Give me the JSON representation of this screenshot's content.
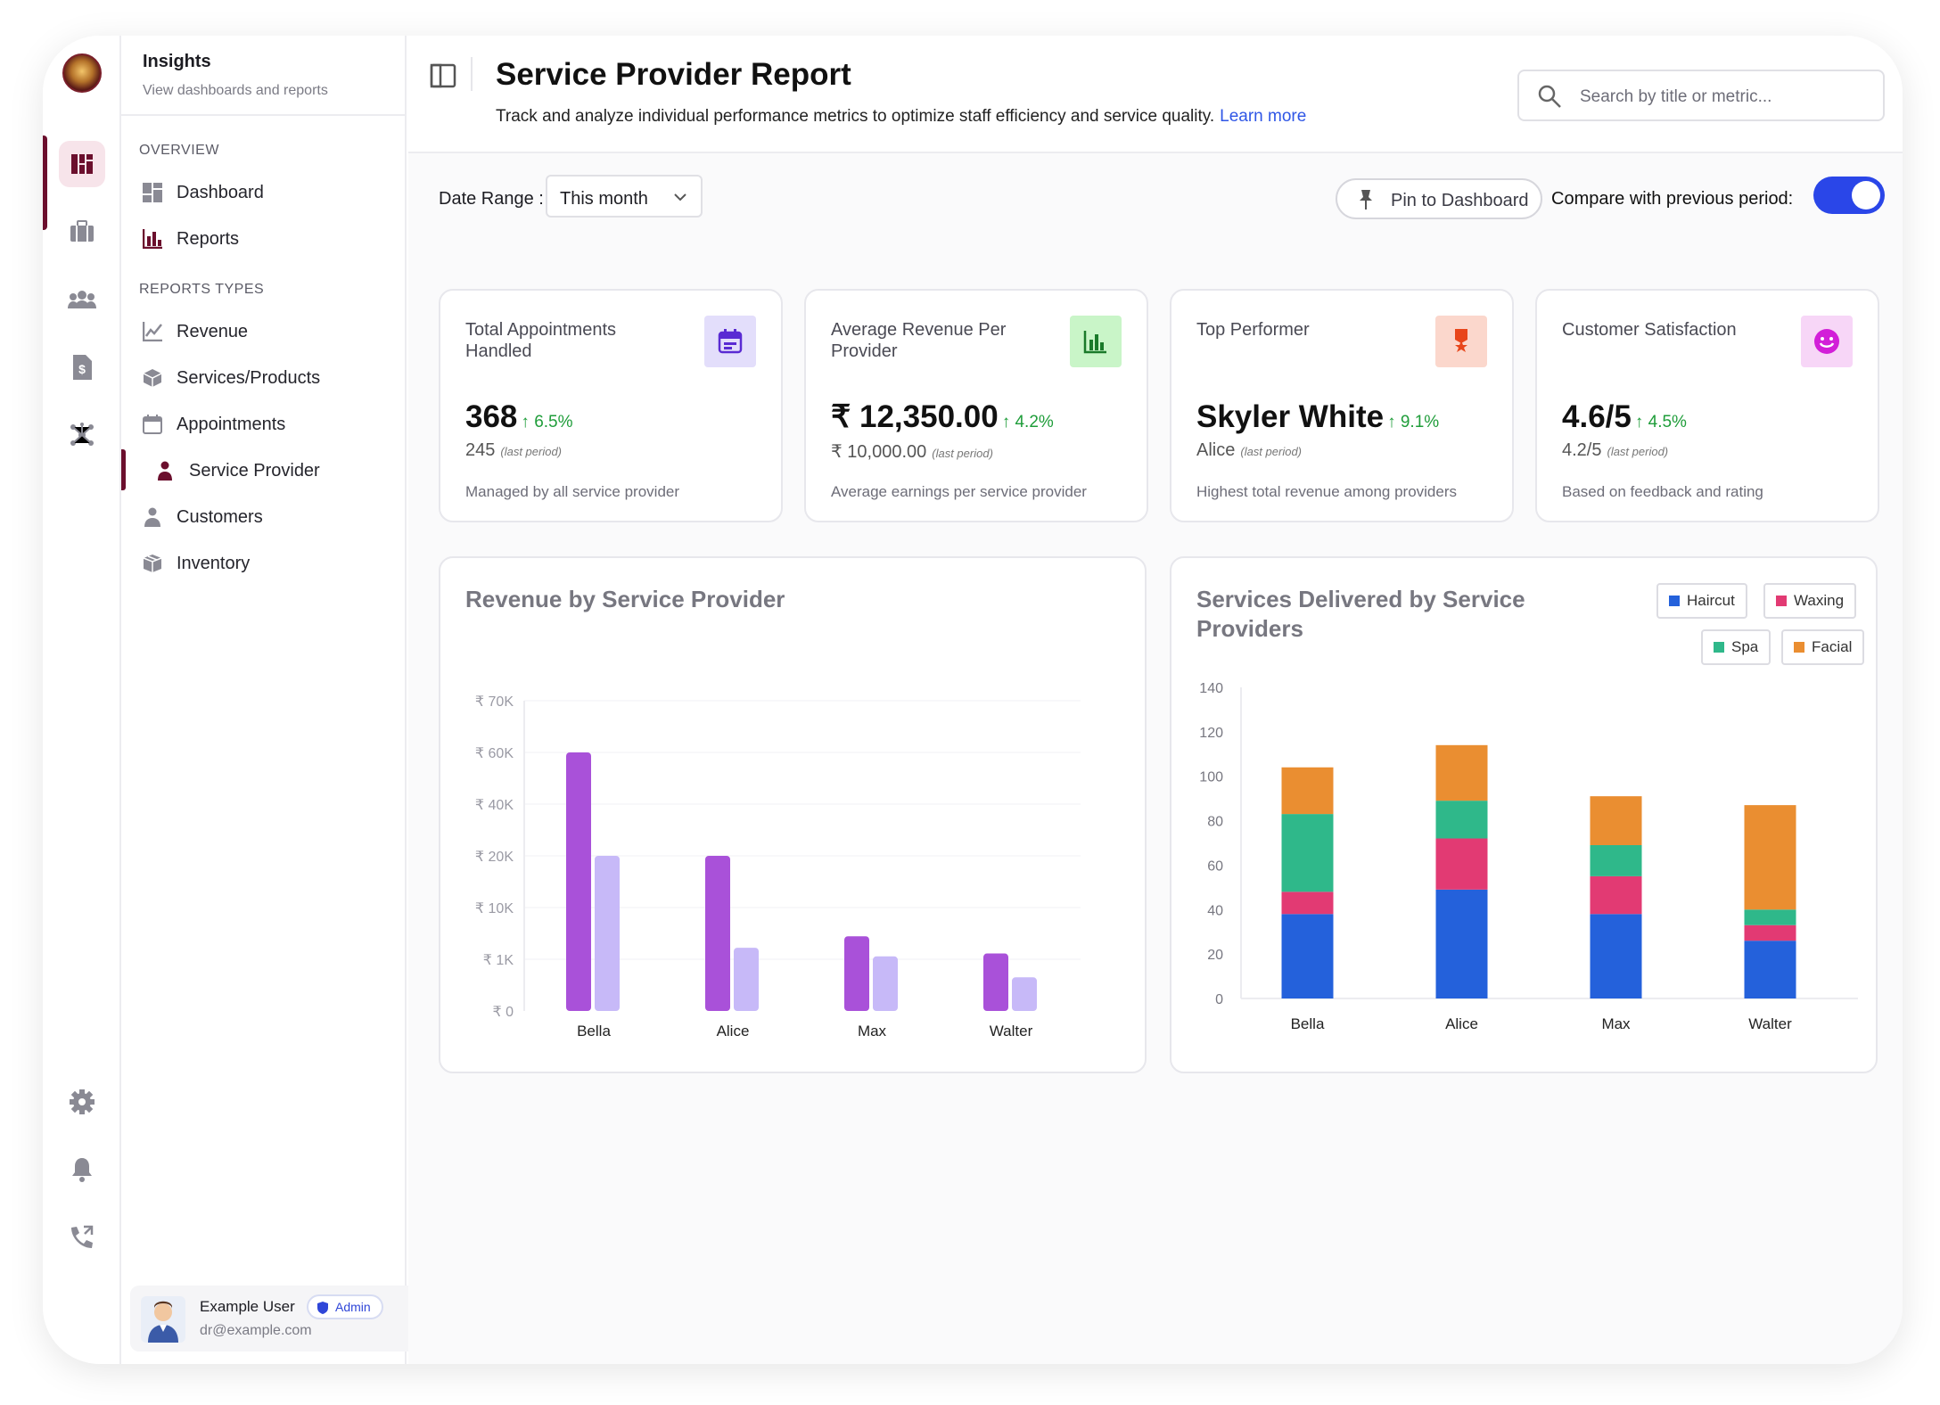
{
  "sidebar": {
    "title": "Insights",
    "subtitle": "View dashboards and reports",
    "overview_label": "OVERVIEW",
    "overview_items": [
      {
        "label": "Dashboard"
      },
      {
        "label": "Reports"
      }
    ],
    "report_types_label": "REPORTS TYPES",
    "report_items": [
      {
        "label": "Revenue"
      },
      {
        "label": "Services/Products"
      },
      {
        "label": "Appointments"
      },
      {
        "label": "Service Provider"
      },
      {
        "label": "Customers"
      },
      {
        "label": "Inventory"
      }
    ],
    "user": {
      "name": "Example User",
      "role": "Admin",
      "email": "dr@example.com"
    }
  },
  "header": {
    "title": "Service Provider Report",
    "subtitle": "Track and analyze individual performance metrics to optimize staff efficiency and service quality.",
    "learn_more": "Learn more",
    "search_placeholder": "Search by title or metric..."
  },
  "controls": {
    "date_range_label": "Date Range :",
    "date_range_value": "This month",
    "pin_label": "Pin to Dashboard",
    "compare_label": "Compare with previous period:",
    "compare_enabled": true
  },
  "cards": [
    {
      "label": "Total Appointments Handled",
      "value": "368",
      "change": "6.5%",
      "previous": "245",
      "previous_tag": "(last period)",
      "note": "Managed by all service provider",
      "icon": "calendar-icon",
      "icon_bg": "#e3defb",
      "icon_color": "#5a2bd3"
    },
    {
      "label": "Average Revenue Per Provider",
      "value": "₹ 12,350.00",
      "change": "4.2%",
      "previous": "₹ 10,000.00",
      "previous_tag": "(last period)",
      "note": "Average earnings per service provider",
      "icon": "bar-chart-icon",
      "icon_bg": "#c9f5c8",
      "icon_color": "#1a7a2a"
    },
    {
      "label": "Top Performer",
      "value": "Skyler White",
      "change": "9.1%",
      "previous": "Alice",
      "previous_tag": "(last period)",
      "note": "Highest total revenue among providers",
      "icon": "award-icon",
      "icon_bg": "#fbd7cc",
      "icon_color": "#e8461b"
    },
    {
      "label": "Customer Satisfaction",
      "value": "4.6/5",
      "change": "4.5%",
      "previous": "4.2/5",
      "previous_tag": "(last period)",
      "note": "Based on feedback and rating",
      "icon": "smile-icon",
      "icon_bg": "#f7d6f7",
      "icon_color": "#d21fd8"
    }
  ],
  "chart_data": [
    {
      "type": "bar",
      "title": "Revenue by Service Provider",
      "categories": [
        "Bella",
        "Alice",
        "Max",
        "Walter"
      ],
      "y_ticks": [
        "₹ 0",
        "₹ 1K",
        "₹ 10K",
        "₹ 20K",
        "₹ 40K",
        "₹ 60K",
        "₹ 70K"
      ],
      "series": [
        {
          "values": [
            60000,
            20000,
            5000,
            2000
          ],
          "color": "#a951d9"
        },
        {
          "values": [
            20000,
            3000,
            1500,
            650
          ],
          "color": "#c7b9f8"
        }
      ]
    },
    {
      "type": "bar",
      "stacked": true,
      "title": "Services Delivered by Service Providers",
      "categories": [
        "Bella",
        "Alice",
        "Max",
        "Walter"
      ],
      "ylim": [
        0,
        140
      ],
      "y_ticks": [
        "0",
        "20",
        "40",
        "60",
        "80",
        "100",
        "120",
        "140"
      ],
      "series": [
        {
          "name": "Haircut",
          "values": [
            38,
            49,
            38,
            26
          ],
          "color": "#2461db"
        },
        {
          "name": "Waxing",
          "values": [
            10,
            23,
            17,
            7
          ],
          "color": "#e23a73"
        },
        {
          "name": "Spa",
          "values": [
            35,
            17,
            14,
            7
          ],
          "color": "#2fb88a"
        },
        {
          "name": "Facial",
          "values": [
            21,
            25,
            22,
            47
          ],
          "color": "#ea8e31"
        }
      ]
    }
  ]
}
